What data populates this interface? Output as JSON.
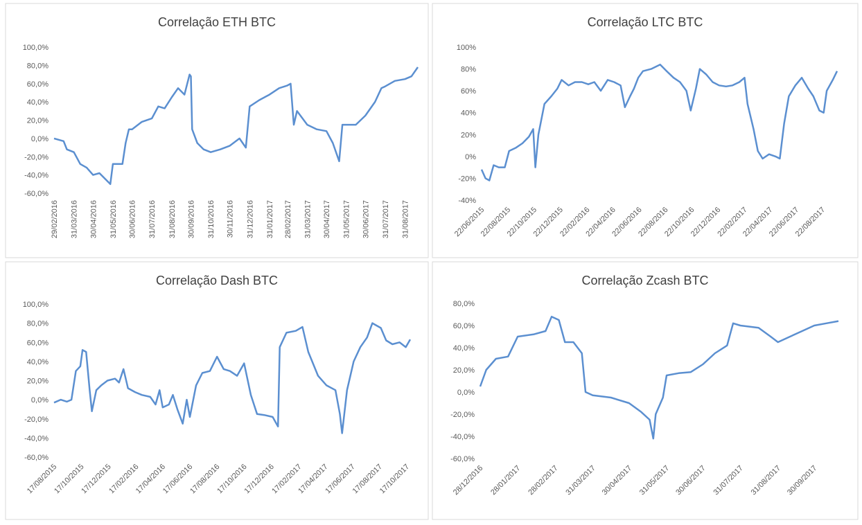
{
  "chart_data": [
    {
      "type": "line",
      "title": "Correlação ETH BTC",
      "color": "#5b8fd0",
      "x": [
        "29/02/2016",
        "15/03/2016",
        "20/03/2016",
        "31/03/2016",
        "10/04/2016",
        "20/04/2016",
        "30/04/2016",
        "10/05/2016",
        "20/05/2016",
        "27/05/2016",
        "31/05/2016",
        "15/06/2016",
        "20/06/2016",
        "25/06/2016",
        "30/06/2016",
        "15/07/2016",
        "31/07/2016",
        "10/08/2016",
        "20/08/2016",
        "31/08/2016",
        "10/09/2016",
        "20/09/2016",
        "28/09/2016",
        "30/09/2016",
        "02/10/2016",
        "10/10/2016",
        "20/10/2016",
        "31/10/2016",
        "15/11/2016",
        "30/11/2016",
        "15/12/2016",
        "25/12/2016",
        "31/12/2016",
        "15/01/2017",
        "31/01/2017",
        "15/02/2017",
        "28/02/2017",
        "05/03/2017",
        "10/03/2017",
        "15/03/2017",
        "31/03/2017",
        "15/04/2017",
        "30/04/2017",
        "10/05/2017",
        "20/05/2017",
        "25/05/2017",
        "31/05/2017",
        "15/06/2017",
        "30/06/2017",
        "15/07/2017",
        "25/07/2017",
        "31/07/2017",
        "15/08/2017",
        "31/08/2017",
        "10/09/2017",
        "20/09/2017"
      ],
      "values": [
        0,
        -3,
        -12,
        -15,
        -28,
        -32,
        -40,
        -38,
        -45,
        -50,
        -28,
        -28,
        -5,
        10,
        10,
        18,
        22,
        35,
        33,
        45,
        55,
        48,
        70,
        68,
        10,
        -5,
        -12,
        -15,
        -12,
        -8,
        0,
        -10,
        35,
        42,
        48,
        55,
        58,
        60,
        15,
        30,
        15,
        10,
        8,
        -5,
        -25,
        15,
        15,
        15,
        25,
        40,
        55,
        57,
        63,
        65,
        68,
        78
      ],
      "xlim": [
        "29/02/2016",
        "20/09/2017"
      ],
      "xticks": [
        "29/02/2016",
        "31/03/2016",
        "30/04/2016",
        "31/05/2016",
        "30/06/2016",
        "31/07/2016",
        "31/08/2016",
        "30/09/2016",
        "31/10/2016",
        "30/11/2016",
        "31/12/2016",
        "31/01/2017",
        "28/02/2017",
        "31/03/2017",
        "30/04/2017",
        "31/05/2017",
        "30/06/2017",
        "31/07/2017",
        "31/08/2017"
      ],
      "ylim": [
        -60,
        100
      ],
      "yticks": [
        {
          "value": -60,
          "label": "-60,0%"
        },
        {
          "value": -40,
          "label": "-40,0%"
        },
        {
          "value": -20,
          "label": "-20,0%"
        },
        {
          "value": 0,
          "label": "0,0%"
        },
        {
          "value": 20,
          "label": "20,0%"
        },
        {
          "value": 40,
          "label": "40,0%"
        },
        {
          "value": 60,
          "label": "60,0%"
        },
        {
          "value": 80,
          "label": "80,0%"
        },
        {
          "value": 100,
          "label": "100,0%"
        }
      ]
    },
    {
      "type": "line",
      "title": "Correlação LTC BTC",
      "color": "#5b8fd0",
      "x": [
        "22/06/2015",
        "01/07/2015",
        "10/07/2015",
        "20/07/2015",
        "01/08/2015",
        "15/08/2015",
        "25/08/2015",
        "10/09/2015",
        "25/09/2015",
        "10/10/2015",
        "20/10/2015",
        "25/10/2015",
        "01/11/2015",
        "15/11/2015",
        "01/12/2015",
        "15/12/2015",
        "25/12/2015",
        "10/01/2016",
        "25/01/2016",
        "10/02/2016",
        "25/02/2016",
        "10/03/2016",
        "25/03/2016",
        "10/04/2016",
        "25/04/2016",
        "10/05/2016",
        "20/05/2016",
        "01/06/2016",
        "10/06/2016",
        "20/06/2016",
        "01/07/2016",
        "20/07/2016",
        "10/08/2016",
        "25/08/2016",
        "10/09/2016",
        "25/09/2016",
        "10/10/2016",
        "20/10/2016",
        "01/11/2016",
        "10/11/2016",
        "25/11/2016",
        "10/12/2016",
        "25/12/2016",
        "10/01/2017",
        "25/01/2017",
        "10/02/2017",
        "22/02/2017",
        "01/03/2017",
        "15/03/2017",
        "25/03/2017",
        "05/04/2017",
        "20/04/2017",
        "05/05/2017",
        "15/05/2017",
        "25/05/2017",
        "05/06/2017",
        "20/06/2017",
        "05/07/2017",
        "20/07/2017",
        "01/08/2017",
        "15/08/2017",
        "25/08/2017",
        "01/09/2017",
        "15/09/2017",
        "25/09/2017"
      ],
      "values": [
        -12,
        -20,
        -22,
        -8,
        -10,
        -10,
        5,
        8,
        12,
        18,
        25,
        -10,
        20,
        48,
        55,
        62,
        70,
        65,
        68,
        68,
        66,
        68,
        60,
        70,
        68,
        65,
        45,
        55,
        62,
        72,
        78,
        80,
        84,
        78,
        72,
        68,
        60,
        42,
        62,
        80,
        75,
        68,
        65,
        64,
        65,
        68,
        72,
        48,
        25,
        5,
        -2,
        2,
        0,
        -2,
        30,
        55,
        65,
        72,
        62,
        55,
        42,
        40,
        60,
        70,
        78
      ],
      "xlim": [
        "22/06/2015",
        "25/09/2017"
      ],
      "xticks": [
        "22/06/2015",
        "22/08/2015",
        "22/10/2015",
        "22/12/2015",
        "22/02/2016",
        "22/04/2016",
        "22/06/2016",
        "22/08/2016",
        "22/10/2016",
        "22/12/2016",
        "22/02/2017",
        "22/04/2017",
        "22/06/2017",
        "22/08/2017"
      ],
      "ylim": [
        -40,
        100
      ],
      "yticks": [
        {
          "value": -40,
          "label": "-40%"
        },
        {
          "value": -20,
          "label": "-20%"
        },
        {
          "value": 0,
          "label": "0%"
        },
        {
          "value": 20,
          "label": "20%"
        },
        {
          "value": 40,
          "label": "40%"
        },
        {
          "value": 60,
          "label": "60%"
        },
        {
          "value": 80,
          "label": "80%"
        },
        {
          "value": 100,
          "label": "100%"
        }
      ]
    },
    {
      "type": "line",
      "title": "Correlação Dash BTC",
      "color": "#5b8fd0",
      "x": [
        "17/08/2015",
        "01/09/2015",
        "15/09/2015",
        "25/09/2015",
        "05/10/2015",
        "15/10/2015",
        "20/10/2015",
        "28/10/2015",
        "05/11/2015",
        "10/11/2015",
        "20/11/2015",
        "01/12/2015",
        "15/12/2015",
        "01/01/2016",
        "10/01/2016",
        "20/01/2016",
        "30/01/2016",
        "15/02/2016",
        "01/03/2016",
        "20/03/2016",
        "01/04/2016",
        "10/04/2016",
        "17/04/2016",
        "01/05/2016",
        "10/05/2016",
        "20/05/2016",
        "01/06/2016",
        "10/06/2016",
        "17/06/2016",
        "01/07/2016",
        "15/07/2016",
        "01/08/2016",
        "17/08/2016",
        "01/09/2016",
        "15/09/2016",
        "01/10/2016",
        "17/10/2016",
        "01/11/2016",
        "15/11/2016",
        "01/12/2016",
        "20/12/2016",
        "01/01/2017",
        "05/01/2017",
        "20/01/2017",
        "10/02/2017",
        "25/02/2017",
        "10/03/2017",
        "01/04/2017",
        "20/04/2017",
        "10/05/2017",
        "20/05/2017",
        "25/05/2017",
        "05/06/2017",
        "20/06/2017",
        "05/07/2017",
        "20/07/2017",
        "01/08/2017",
        "20/08/2017",
        "01/09/2017",
        "15/09/2017",
        "01/10/2017",
        "15/10/2017",
        "25/10/2017"
      ],
      "values": [
        -3,
        0,
        -2,
        0,
        30,
        35,
        52,
        50,
        10,
        -12,
        10,
        15,
        20,
        22,
        18,
        32,
        12,
        8,
        5,
        3,
        -5,
        10,
        -8,
        -5,
        5,
        -10,
        -25,
        0,
        -18,
        15,
        28,
        30,
        45,
        32,
        30,
        25,
        38,
        5,
        -15,
        -16,
        -18,
        -28,
        55,
        70,
        72,
        76,
        50,
        25,
        15,
        10,
        -15,
        -35,
        10,
        40,
        55,
        65,
        80,
        75,
        62,
        58,
        60,
        55,
        63
      ],
      "xlim": [
        "17/08/2015",
        "25/10/2017"
      ],
      "xticks": [
        "17/08/2015",
        "17/10/2015",
        "17/12/2015",
        "17/02/2016",
        "17/04/2016",
        "17/06/2016",
        "17/08/2016",
        "17/10/2016",
        "17/12/2016",
        "17/02/2017",
        "17/04/2017",
        "17/06/2017",
        "17/08/2017",
        "17/10/2017"
      ],
      "ylim": [
        -60,
        100
      ],
      "yticks": [
        {
          "value": -60,
          "label": "-60,0%"
        },
        {
          "value": -40,
          "label": "-40,0%"
        },
        {
          "value": -20,
          "label": "-20,0%"
        },
        {
          "value": 0,
          "label": "0,0%"
        },
        {
          "value": 20,
          "label": "20,0%"
        },
        {
          "value": 40,
          "label": "40,0%"
        },
        {
          "value": 60,
          "label": "60,0%"
        },
        {
          "value": 80,
          "label": "80,0%"
        },
        {
          "value": 100,
          "label": "100,0%"
        }
      ]
    },
    {
      "type": "line",
      "title": "Correlação Zcash BTC",
      "color": "#5b8fd0",
      "x": [
        "28/12/2016",
        "02/01/2017",
        "10/01/2017",
        "20/01/2017",
        "28/01/2017",
        "10/02/2017",
        "20/02/2017",
        "25/02/2017",
        "03/03/2017",
        "08/03/2017",
        "15/03/2017",
        "22/03/2017",
        "25/03/2017",
        "31/03/2017",
        "15/04/2017",
        "30/04/2017",
        "10/05/2017",
        "17/05/2017",
        "20/05/2017",
        "22/05/2017",
        "28/05/2017",
        "31/05/2017",
        "10/06/2017",
        "20/06/2017",
        "30/06/2017",
        "10/07/2017",
        "20/07/2017",
        "25/07/2017",
        "31/07/2017",
        "15/08/2017",
        "25/08/2017",
        "31/08/2017",
        "10/09/2017",
        "20/09/2017",
        "30/09/2017",
        "10/10/2017",
        "20/10/2017"
      ],
      "values": [
        5,
        20,
        30,
        32,
        50,
        52,
        55,
        68,
        65,
        45,
        45,
        35,
        0,
        -3,
        -5,
        -10,
        -18,
        -25,
        -42,
        -20,
        -5,
        15,
        17,
        18,
        25,
        35,
        42,
        62,
        60,
        58,
        50,
        45,
        50,
        55,
        60,
        62,
        64
      ],
      "xlim": [
        "28/12/2016",
        "20/10/2017"
      ],
      "xticks": [
        "28/12/2016",
        "28/01/2017",
        "28/02/2017",
        "31/03/2017",
        "30/04/2017",
        "31/05/2017",
        "30/06/2017",
        "31/07/2017",
        "31/08/2017",
        "30/09/2017"
      ],
      "ylim": [
        -60,
        80
      ],
      "yticks": [
        {
          "value": -60,
          "label": "-60,0%"
        },
        {
          "value": -40,
          "label": "-40,0%"
        },
        {
          "value": -20,
          "label": "-20,0%"
        },
        {
          "value": 0,
          "label": "0,0%"
        },
        {
          "value": 20,
          "label": "20,0%"
        },
        {
          "value": 40,
          "label": "40,0%"
        },
        {
          "value": 60,
          "label": "60,0%"
        },
        {
          "value": 80,
          "label": "80,0%"
        }
      ]
    }
  ]
}
